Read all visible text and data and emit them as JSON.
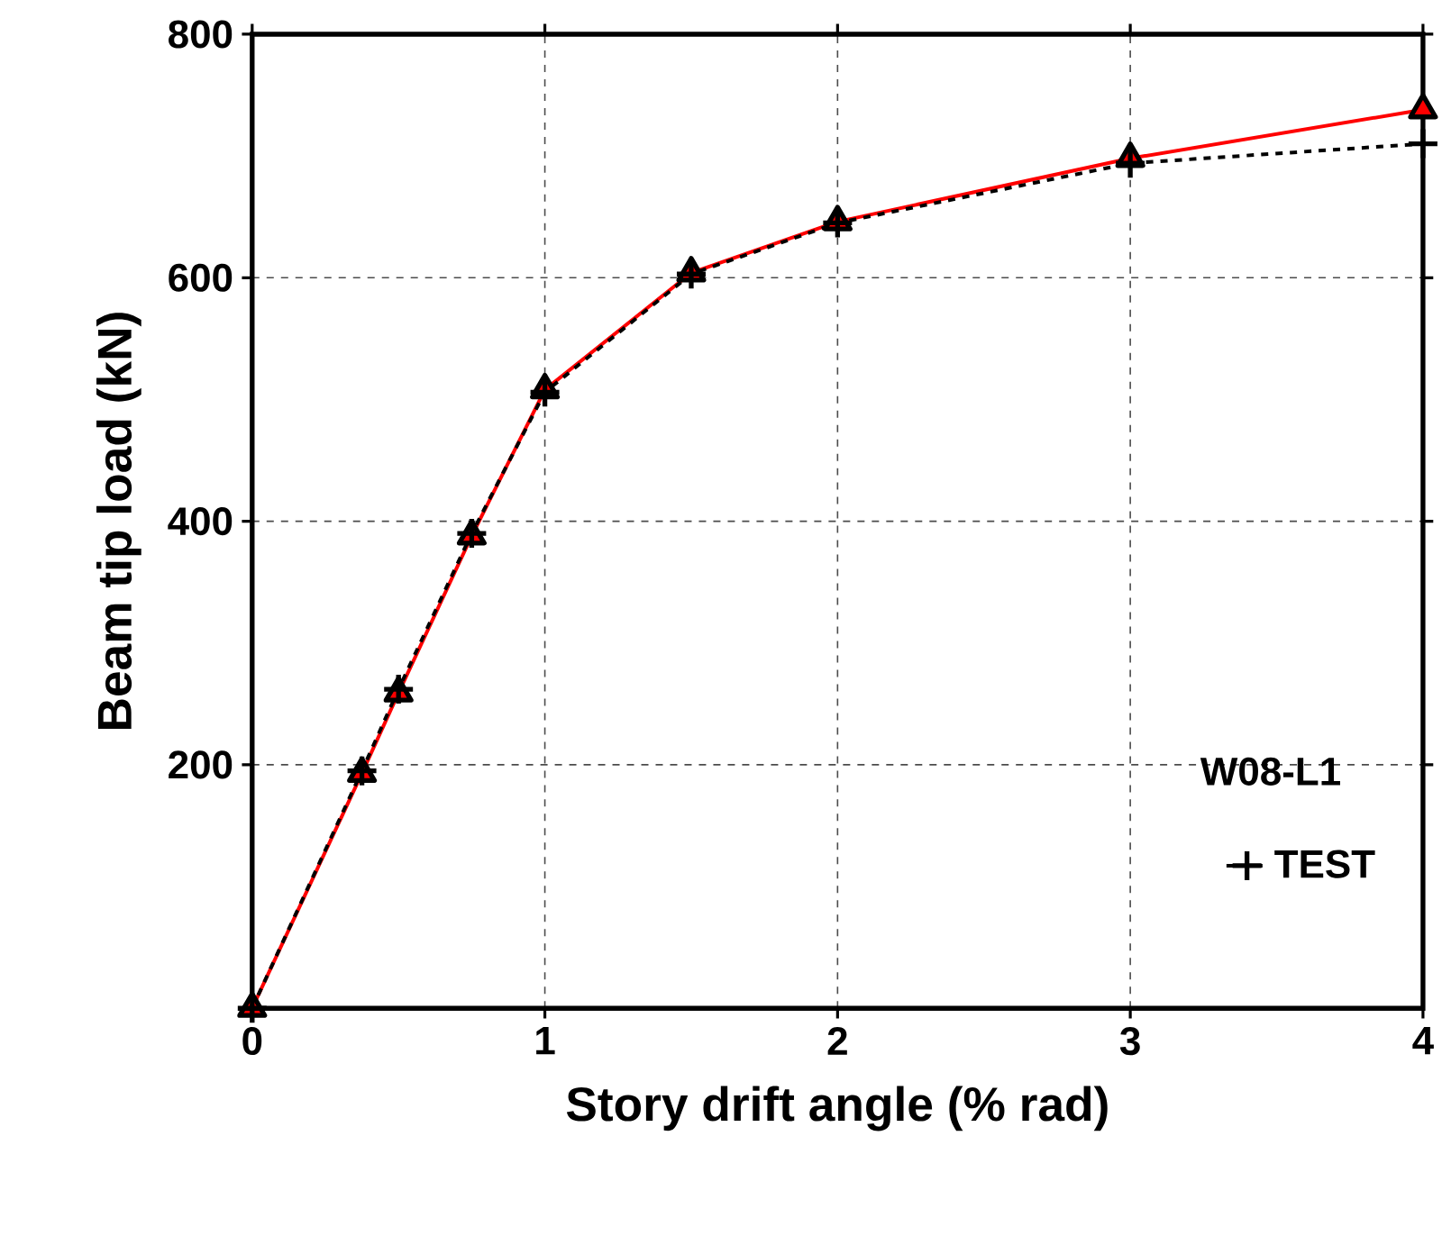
{
  "chart_data": {
    "type": "line",
    "xlabel": "Story drift angle (% rad)",
    "ylabel": "Beam tip load (kN)",
    "legend_title": "W08-L1",
    "x": [
      0,
      0.375,
      0.5,
      0.75,
      1,
      1.5,
      2,
      3,
      4
    ],
    "series": [
      {
        "color": "#ff0000",
        "marker": "triangle",
        "line_style": "solid",
        "values": [
          0,
          193,
          259,
          388,
          508,
          604,
          646,
          698,
          738
        ]
      },
      {
        "name": "TEST",
        "color": "#000000",
        "marker": "cross",
        "line_style": "dashed",
        "values": [
          0,
          195,
          262,
          390,
          506,
          603,
          645,
          694,
          710
        ]
      }
    ],
    "xlim": [
      0,
      4
    ],
    "ylim": [
      0,
      800
    ],
    "xticks": [
      0,
      1,
      2,
      3,
      4
    ],
    "yticks": [
      200,
      400,
      600,
      800
    ],
    "grid": true,
    "legend": "bottom right"
  }
}
